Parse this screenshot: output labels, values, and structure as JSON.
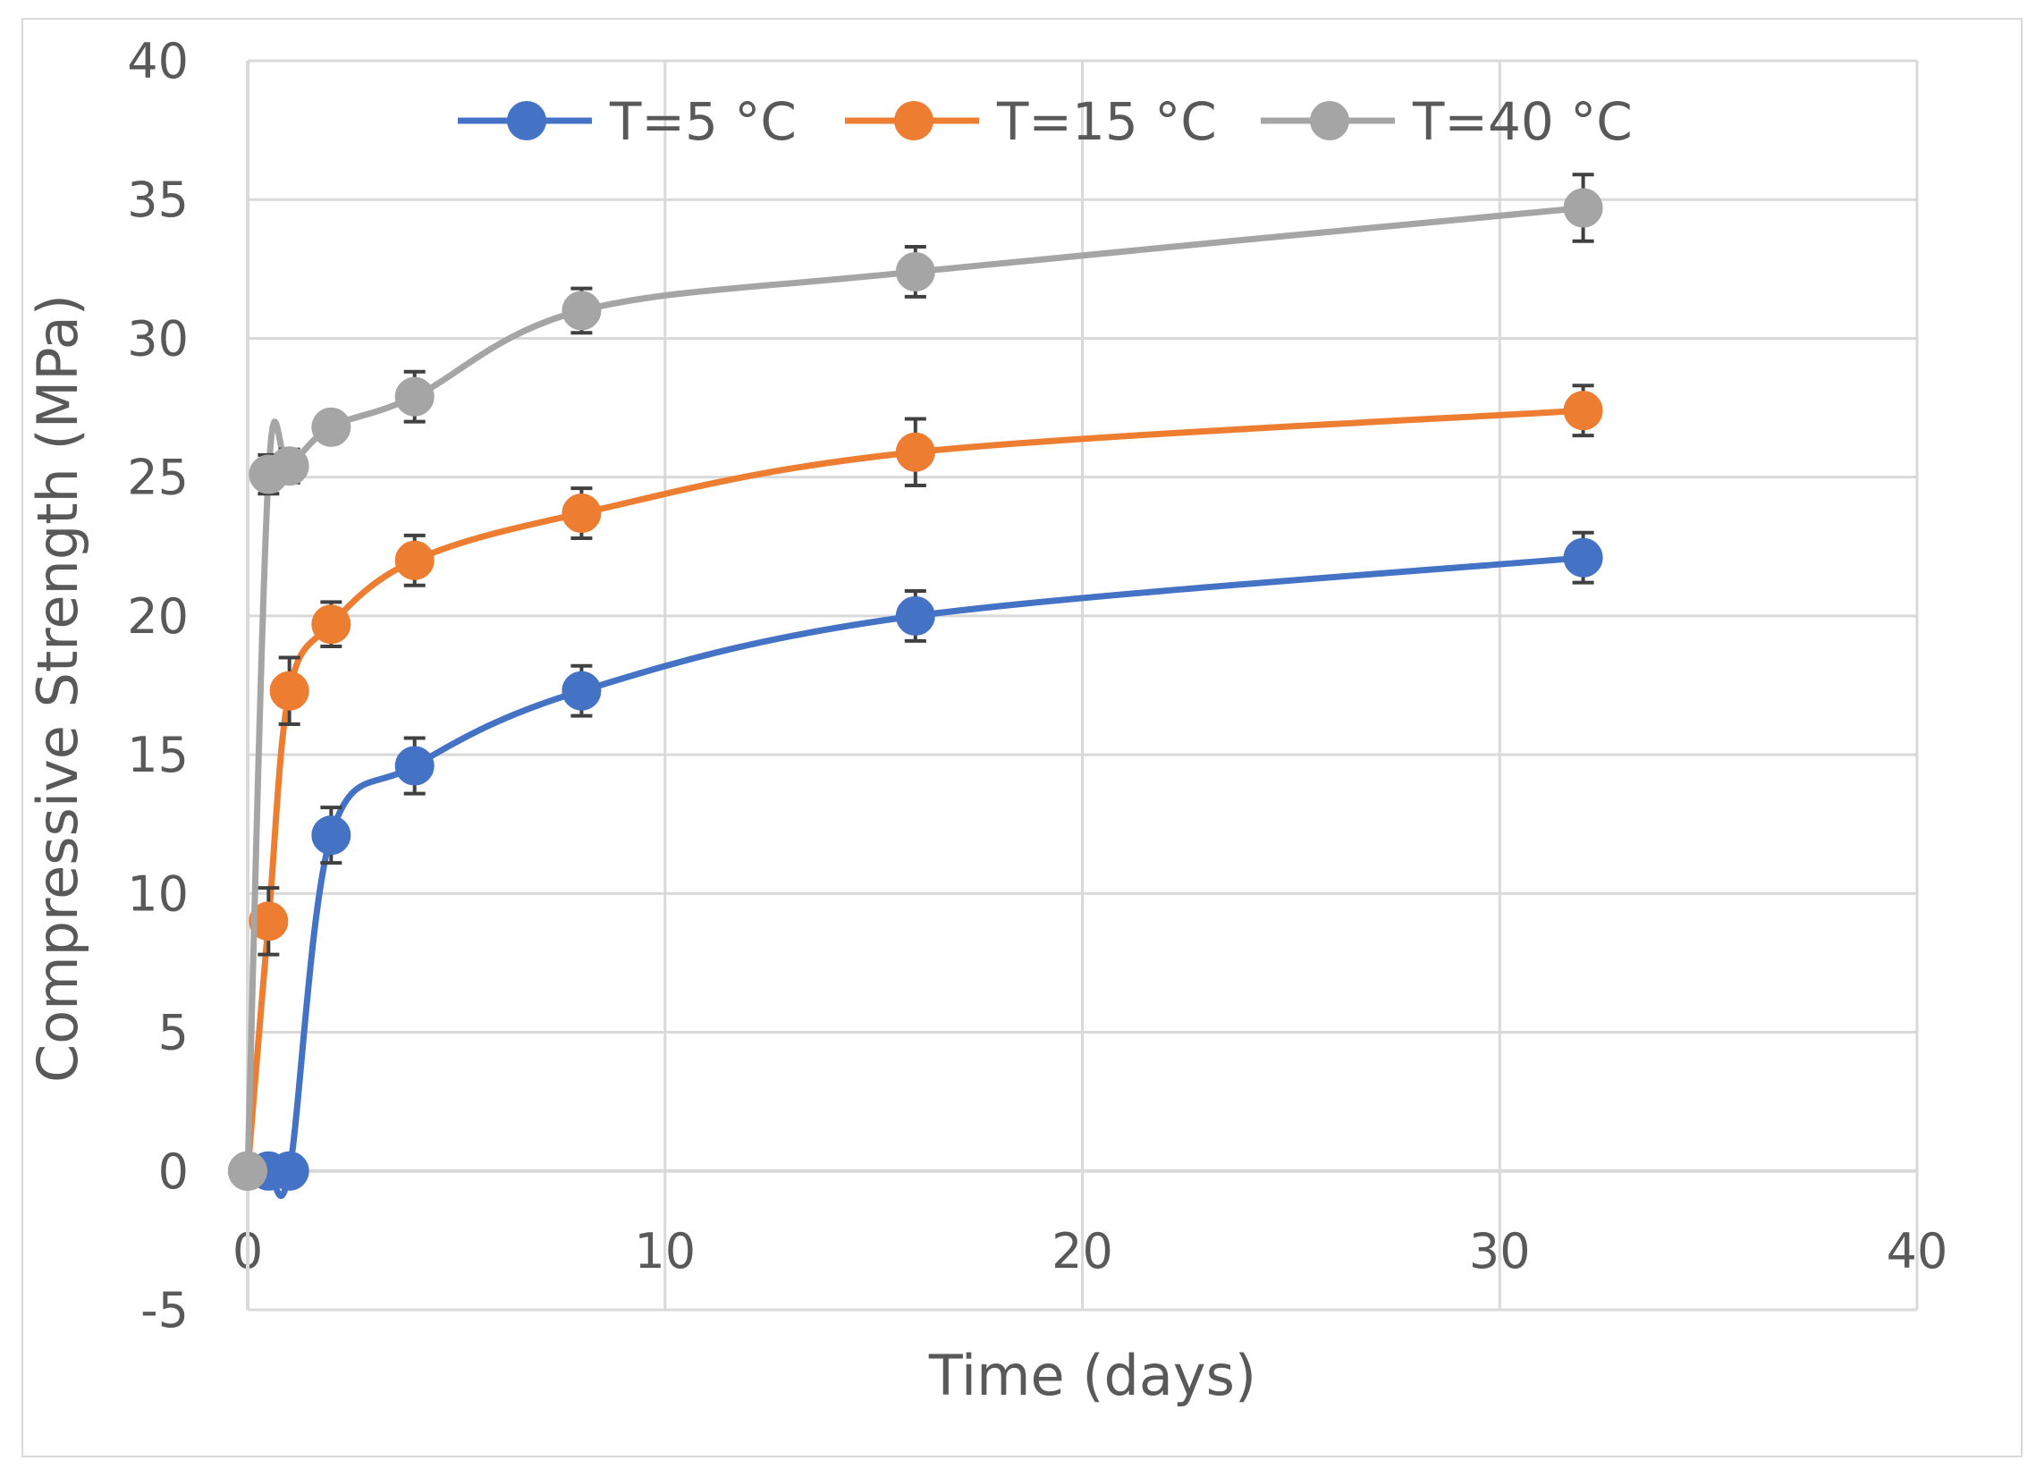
{
  "chart_data": {
    "type": "line",
    "title": "",
    "xlabel": "Time (days)",
    "ylabel": "Compressive Strength (MPa)",
    "xlim": [
      0,
      40
    ],
    "ylim": [
      -5,
      40
    ],
    "x_ticks": [
      "0",
      "10",
      "20",
      "30",
      "40"
    ],
    "y_ticks": [
      "-5",
      "0",
      "5",
      "10",
      "15",
      "20",
      "25",
      "30",
      "35",
      "40"
    ],
    "grid": true,
    "legend_position": "top",
    "series": [
      {
        "name": "T=5 °C",
        "color": "#4472c4",
        "points": [
          {
            "x": 0,
            "y": 0,
            "err": 0
          },
          {
            "x": 0.5,
            "y": 0,
            "err": 0
          },
          {
            "x": 1,
            "y": 0,
            "err": 0
          },
          {
            "x": 2,
            "y": 12.1,
            "err": 1.0
          },
          {
            "x": 4,
            "y": 14.6,
            "err": 1.0
          },
          {
            "x": 8,
            "y": 17.3,
            "err": 0.9
          },
          {
            "x": 16,
            "y": 20.0,
            "err": 0.9
          },
          {
            "x": 32,
            "y": 22.1,
            "err": 0.9
          }
        ]
      },
      {
        "name": "T=15 °C",
        "color": "#ed7d31",
        "points": [
          {
            "x": 0,
            "y": 0,
            "err": 0
          },
          {
            "x": 0.5,
            "y": 9.0,
            "err": 1.2
          },
          {
            "x": 1,
            "y": 17.3,
            "err": 1.2
          },
          {
            "x": 2,
            "y": 19.7,
            "err": 0.8
          },
          {
            "x": 4,
            "y": 22.0,
            "err": 0.9
          },
          {
            "x": 8,
            "y": 23.7,
            "err": 0.9
          },
          {
            "x": 16,
            "y": 25.9,
            "err": 1.2
          },
          {
            "x": 32,
            "y": 27.4,
            "err": 0.9
          }
        ]
      },
      {
        "name": "T=40 °C",
        "color": "#a5a5a5",
        "points": [
          {
            "x": 0,
            "y": 0,
            "err": 0
          },
          {
            "x": 0.5,
            "y": 25.1,
            "err": 0.7
          },
          {
            "x": 1,
            "y": 25.4,
            "err": 0.6
          },
          {
            "x": 2,
            "y": 26.8,
            "err": 0.3
          },
          {
            "x": 4,
            "y": 27.9,
            "err": 0.9
          },
          {
            "x": 8,
            "y": 31.0,
            "err": 0.8
          },
          {
            "x": 16,
            "y": 32.4,
            "err": 0.9
          },
          {
            "x": 32,
            "y": 34.7,
            "err": 1.2
          }
        ]
      }
    ]
  }
}
